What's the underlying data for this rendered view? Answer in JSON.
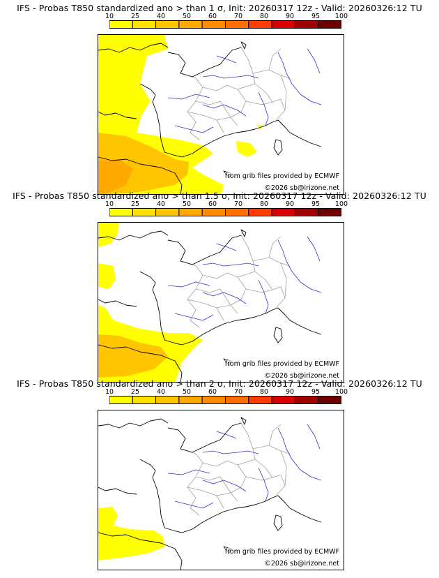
{
  "legend": {
    "labels": [
      "10",
      "25",
      "40",
      "50",
      "60",
      "70",
      "80",
      "90",
      "95",
      "100"
    ],
    "colors": [
      "#ffff00",
      "#ffe200",
      "#ffc600",
      "#ffa800",
      "#ff8c00",
      "#ff6e00",
      "#ff3c00",
      "#d80000",
      "#a00000",
      "#6e0000"
    ]
  },
  "credits": {
    "source": "from grib files provided by ECMWF",
    "copyright": "©2026 sb@irizone.net"
  },
  "colors": {
    "coast": "#000000",
    "borders": "#a0a0a0",
    "rivers": "#3030d0",
    "prob_low": "#ffff00",
    "prob_mid": "#ffc600"
  },
  "panels": [
    {
      "title": "IFS - Probas T850  standardized ano > than 1 σ, Init: 20260317 12z - Valid: 20260326:12 TU",
      "threshold_sigma": 1
    },
    {
      "title": "IFS - Probas T850  standardized ano > than 1.5 σ, Init: 20260317 12z - Valid: 20260326:12 TU",
      "threshold_sigma": 1.5
    },
    {
      "title": "IFS - Probas T850  standardized ano > than 2 σ, Init: 20260317 12z - Valid: 20260326:12 TU",
      "threshold_sigma": 2
    }
  ]
}
